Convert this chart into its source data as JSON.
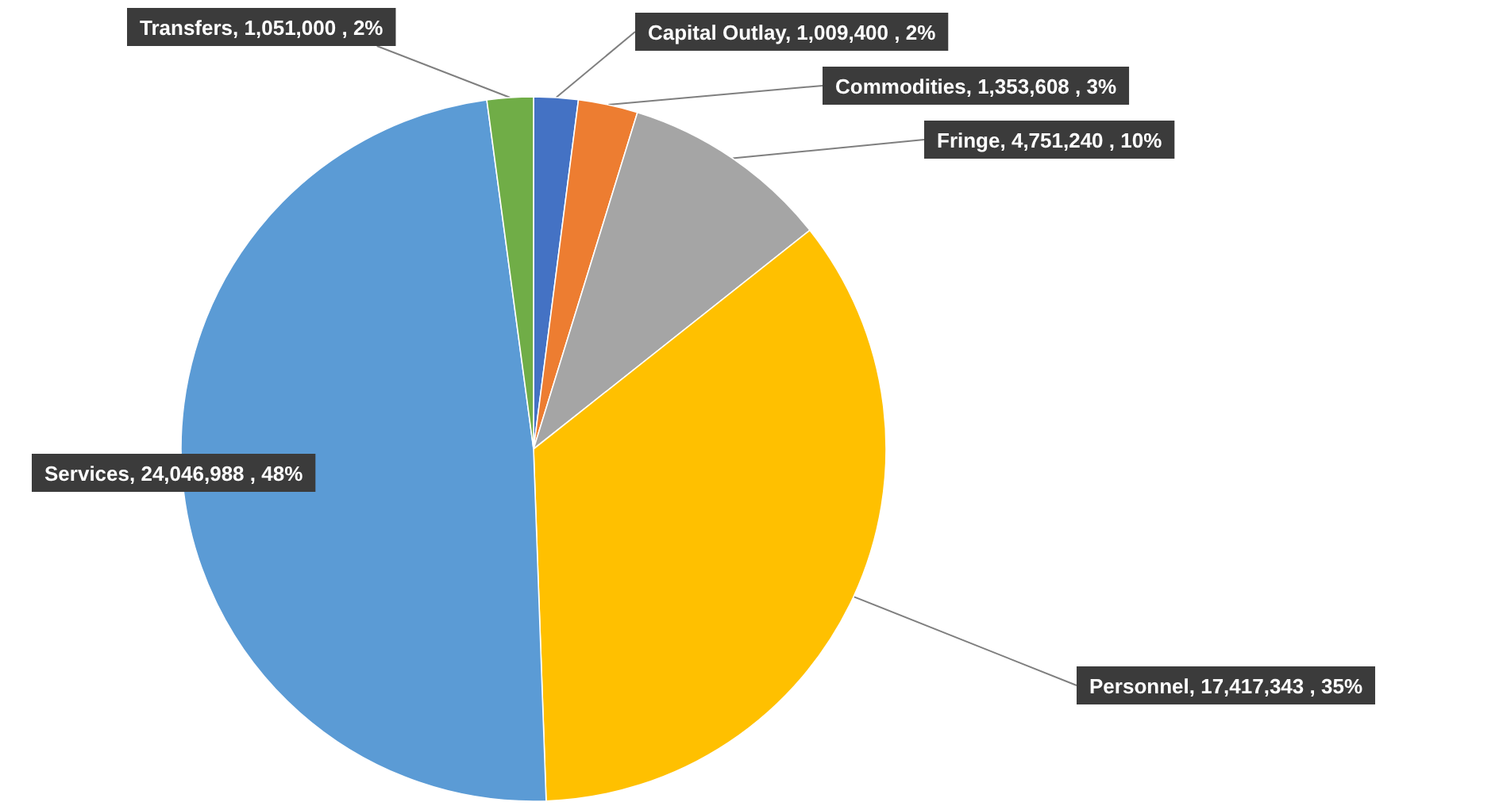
{
  "chart_data": {
    "type": "pie",
    "categories": [
      "Capital Outlay",
      "Commodities",
      "Fringe",
      "Personnel",
      "Services",
      "Transfers"
    ],
    "values": [
      1009400,
      1353608,
      4751240,
      17417343,
      24046988,
      1051000
    ],
    "colors": [
      "#4472c4",
      "#ed7d31",
      "#a5a5a5",
      "#ffc000",
      "#5b9bd5",
      "#70ad47"
    ],
    "value_labels": [
      ", 1,009,400 , 2%",
      ", 1,353,608 , 3%",
      ", 4,751,240 , 10%",
      ", 17,417,343 , 35%",
      ", 24,046,988 , 48%",
      ", 1,051,000 , 2%"
    ]
  }
}
